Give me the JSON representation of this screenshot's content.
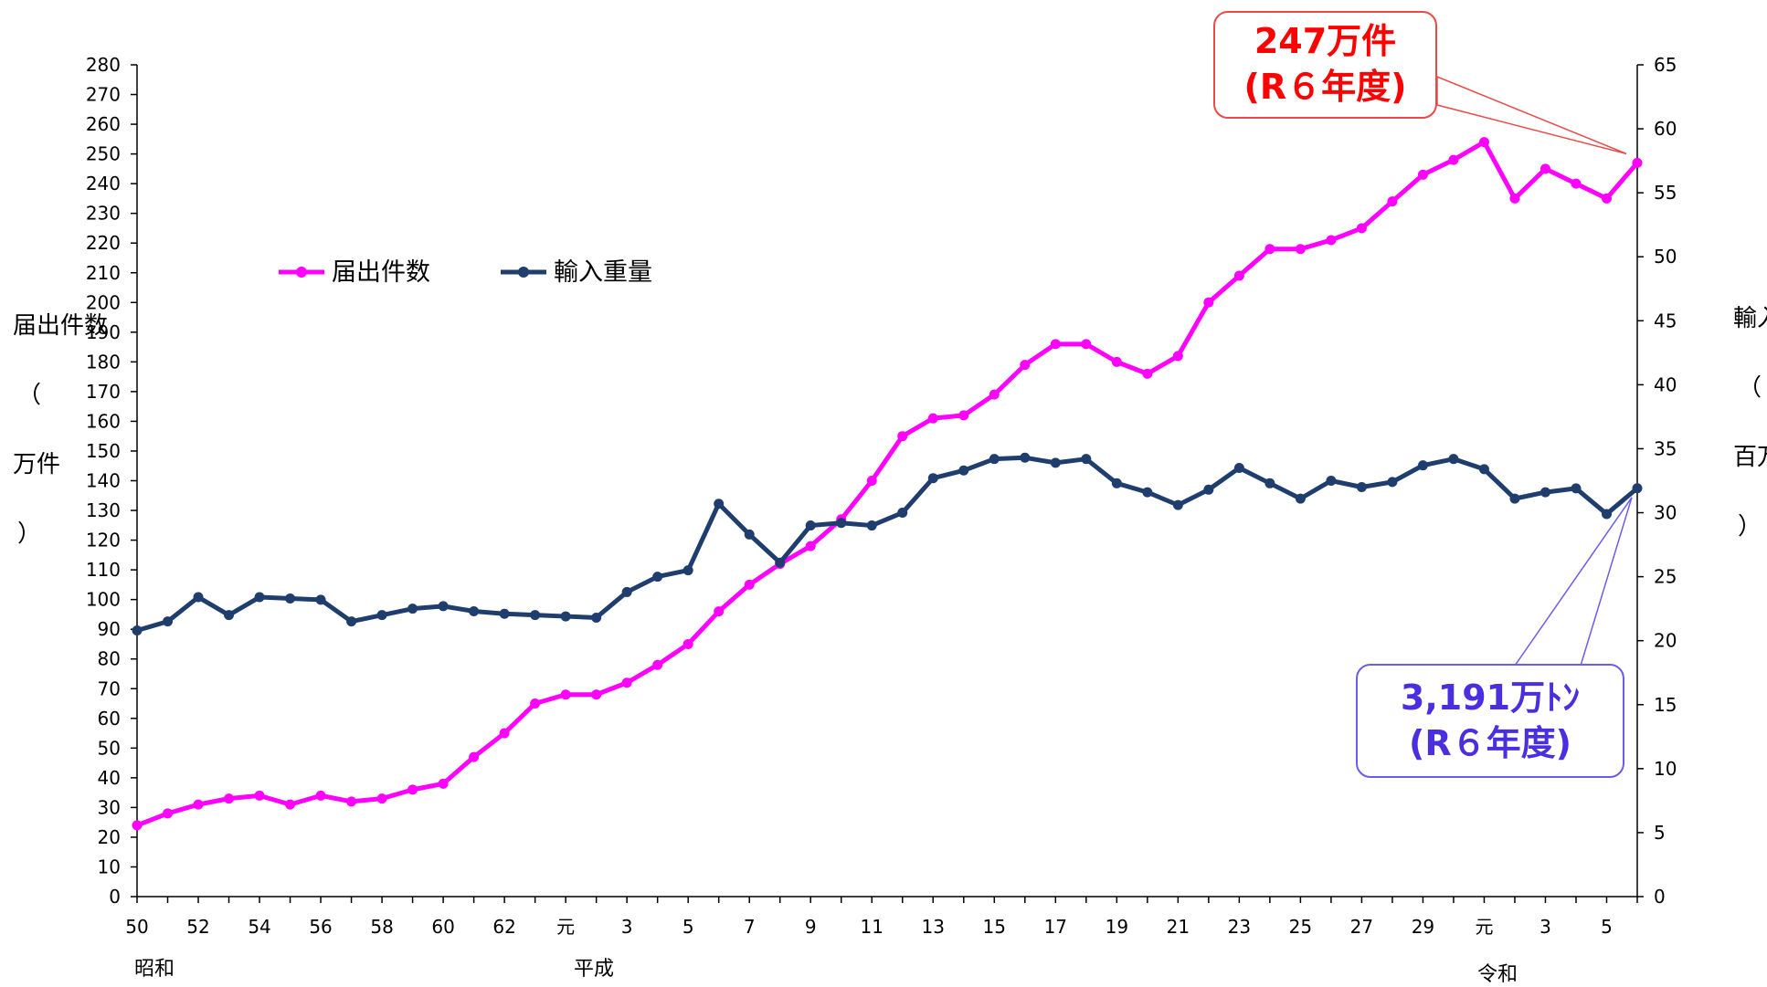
{
  "chart_data": {
    "type": "line",
    "x": [
      "50",
      "51",
      "52",
      "53",
      "54",
      "55",
      "56",
      "57",
      "58",
      "59",
      "60",
      "61",
      "62",
      "63",
      "元",
      "2",
      "3",
      "4",
      "5",
      "6",
      "7",
      "8",
      "9",
      "10",
      "11",
      "12",
      "13",
      "14",
      "15",
      "16",
      "17",
      "18",
      "19",
      "20",
      "21",
      "22",
      "23",
      "24",
      "25",
      "26",
      "27",
      "28",
      "29",
      "30",
      "元",
      "2",
      "3",
      "4",
      "5",
      "6"
    ],
    "x_tick_labels": [
      "50",
      "52",
      "54",
      "56",
      "58",
      "60",
      "62",
      "元",
      "3",
      "5",
      "7",
      "9",
      "11",
      "13",
      "15",
      "17",
      "19",
      "21",
      "23",
      "25",
      "27",
      "29",
      "元",
      "3",
      "5"
    ],
    "eras": [
      "昭和",
      "平成",
      "令和"
    ],
    "series": [
      {
        "name": "届出件数",
        "axis": "left",
        "color": "#ff00ff",
        "values": [
          24,
          28,
          31,
          33,
          34,
          31,
          34,
          32,
          33,
          36,
          38,
          47,
          55,
          65,
          68,
          68,
          72,
          78,
          85,
          96,
          105,
          112,
          118,
          127,
          140,
          155,
          161,
          162,
          169,
          179,
          186,
          186,
          180,
          176,
          182,
          200,
          209,
          218,
          218,
          221,
          225,
          234,
          243,
          248,
          254,
          235,
          245,
          240,
          235,
          247
        ]
      },
      {
        "name": "輸入重量",
        "axis": "right",
        "color": "#1f3e6e",
        "values": [
          20.8,
          21.5,
          23.4,
          22.0,
          23.4,
          23.3,
          23.2,
          21.5,
          22.0,
          22.5,
          22.7,
          22.3,
          22.1,
          22.0,
          21.9,
          21.8,
          23.8,
          25.0,
          25.5,
          30.7,
          28.3,
          26.1,
          29.0,
          29.2,
          29.0,
          30.0,
          32.7,
          33.3,
          34.2,
          34.3,
          33.9,
          34.2,
          32.3,
          31.6,
          30.6,
          31.8,
          33.5,
          32.3,
          31.1,
          32.5,
          32.0,
          32.4,
          33.7,
          34.2,
          33.4,
          31.1,
          31.6,
          31.9,
          29.9,
          31.91
        ]
      }
    ],
    "yleft": {
      "ylim": [
        0,
        280
      ],
      "ticks": [
        0,
        10,
        20,
        30,
        40,
        50,
        60,
        70,
        80,
        90,
        100,
        110,
        120,
        130,
        140,
        150,
        160,
        170,
        180,
        190,
        200,
        210,
        220,
        230,
        240,
        250,
        260,
        270,
        280
      ],
      "label": "届出件数\n\n（\n\n万件\n\n）"
    },
    "yright": {
      "ylim": [
        0,
        65
      ],
      "ticks": [
        0,
        5,
        10,
        15,
        20,
        25,
        30,
        35,
        40,
        45,
        50,
        55,
        60,
        65
      ],
      "label": "輸入重量\n\n（\n\n百万トン\n\n）"
    },
    "legend_position": "top-left",
    "grid": false,
    "annotations": [
      {
        "id": "pink",
        "line1": "247万件",
        "line2": "(R６年度)",
        "color": "#ff0000",
        "target_series": 0
      },
      {
        "id": "blue",
        "line1": "3,191万ﾄﾝ",
        "line2": "(R６年度)",
        "color": "#4a2fe0",
        "target_series": 1
      }
    ]
  }
}
